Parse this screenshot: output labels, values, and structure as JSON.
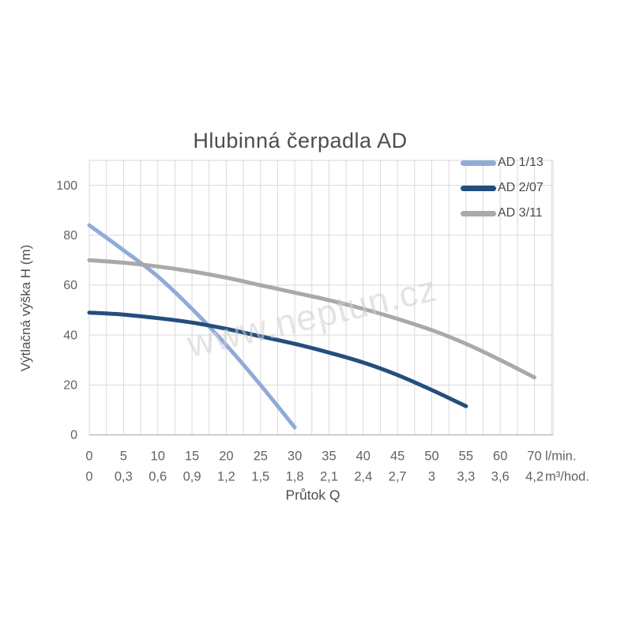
{
  "watermark": "www.neptun.cz",
  "chart_data": {
    "type": "line",
    "title": "Hlubinná čerpadla AD",
    "legend_position": "top-right",
    "x_axis": {
      "title": "Průtok Q",
      "primary_unit_label": "l/min.",
      "secondary_unit_label": "m³/hod.",
      "categories_lmin": [
        "0",
        "5",
        "10",
        "15",
        "20",
        "25",
        "30",
        "35",
        "40",
        "45",
        "50",
        "55",
        "60",
        "70"
      ],
      "categories_m3hod": [
        "0",
        "0,3",
        "0,6",
        "0,9",
        "1,2",
        "1,5",
        "1,8",
        "2,1",
        "2,4",
        "2,7",
        "3",
        "3,3",
        "3,6",
        "4,2"
      ]
    },
    "y_axis": {
      "title": "Výtlačná výška H (m)",
      "ticks": [
        0,
        20,
        40,
        60,
        80,
        100
      ],
      "displayed_max": 110,
      "grid": true
    },
    "series": [
      {
        "name": "AD 1/13",
        "color": "#91abd8",
        "values_h_m": [
          84,
          74,
          63.5,
          50.5,
          36,
          20,
          3
        ]
      },
      {
        "name": "AD 2/07",
        "color": "#234e7d",
        "values_h_m": [
          49,
          48.2,
          46.8,
          45,
          42.5,
          39.5,
          36.5,
          33,
          29,
          24,
          18,
          11.5
        ]
      },
      {
        "name": "AD 3/11",
        "color": "#a9a9a9",
        "values_h_m": [
          70,
          69,
          67.5,
          65.5,
          63,
          60,
          57,
          54,
          50.5,
          46.5,
          42,
          36.5,
          30,
          23
        ]
      }
    ]
  },
  "colors": {
    "gridline": "#d9d9d9",
    "axis_line": "#bdbdbd",
    "tick_text": "#636363",
    "background": "#ffffff"
  }
}
